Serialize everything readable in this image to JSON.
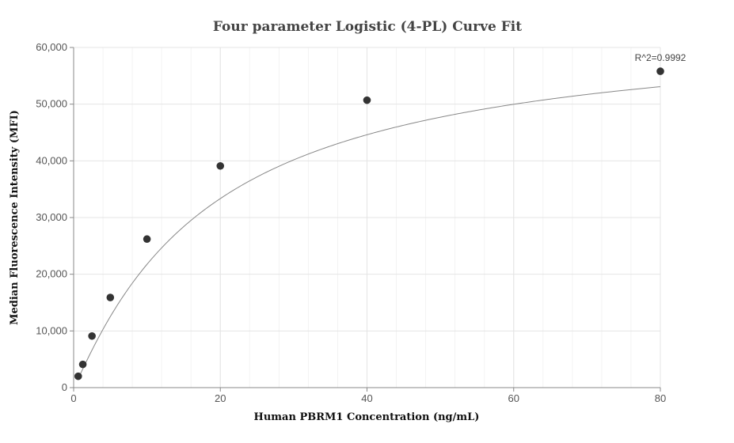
{
  "chart_data": {
    "type": "scatter",
    "title": "Four parameter Logistic (4-PL) Curve Fit",
    "xlabel": "Human PBRM1 Concentration (ng/mL)",
    "ylabel": "Median Fluorescence Intensity (MFI)",
    "xlim": [
      0,
      80
    ],
    "ylim": [
      0,
      60000
    ],
    "x_ticks": [
      0,
      20,
      40,
      60,
      80
    ],
    "y_ticks": [
      0,
      10000,
      20000,
      30000,
      40000,
      50000,
      60000
    ],
    "x_tick_labels": [
      "0",
      "20",
      "40",
      "60",
      "80"
    ],
    "y_tick_labels": [
      "0",
      "10,000",
      "20,000",
      "30,000",
      "40,000",
      "50,000",
      "60,000"
    ],
    "grid": true,
    "series": [
      {
        "x": [
          0.625,
          1.25,
          2.5,
          5,
          10,
          20,
          40,
          80
        ],
        "y": [
          2000,
          4100,
          9100,
          15900,
          26200,
          39100,
          50700,
          55800
        ],
        "color": "#333333"
      }
    ],
    "fit_curve": {
      "model": "4-PL",
      "color": "#888888"
    },
    "annotation": "R^2=0.9992"
  }
}
